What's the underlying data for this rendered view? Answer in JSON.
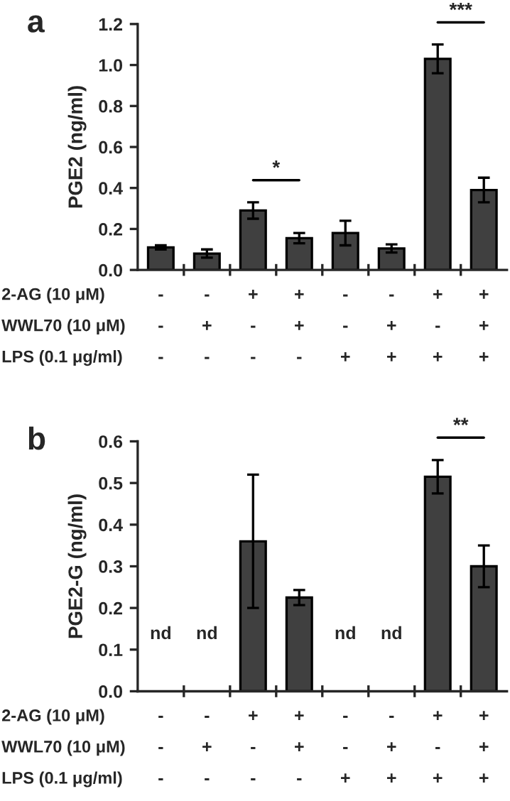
{
  "chart_data": [
    {
      "type": "bar",
      "title": "a",
      "ylabel": "PGE2 (ng/ml)",
      "categories": [
        "-\n-\n-",
        "-\n+\n-",
        "+\n-\n-",
        "+\n+\n-",
        "-\n-\n+",
        "-\n+\n+",
        "+\n-\n+",
        "+\n+\n+"
      ],
      "values": [
        0.11,
        0.08,
        0.29,
        0.155,
        0.18,
        0.105,
        1.03,
        0.39
      ],
      "errors": [
        0.01,
        0.02,
        0.04,
        0.025,
        0.06,
        0.02,
        0.07,
        0.06
      ],
      "color": "#404040",
      "ylim": [
        0,
        1.2
      ],
      "yticks": [
        {
          "value": 0,
          "label": "0.0"
        },
        {
          "value": 0.2,
          "label": "0.2"
        },
        {
          "value": 0.4,
          "label": "0.4"
        },
        {
          "value": 0.6,
          "label": "0.6"
        },
        {
          "value": 0.8,
          "label": "0.8"
        },
        {
          "value": 1.0,
          "label": "1.0"
        },
        {
          "value": 1.2,
          "label": "1.2"
        }
      ],
      "annotations": [
        "2-AG (10 μM)",
        "WWL70 (10 μM)",
        "LPS (0.1 μg/ml)",
        "*",
        "***"
      ],
      "grid": false,
      "legend": false
    },
    {
      "type": "bar",
      "title": "b",
      "ylabel": "PGE2-G (ng/ml)",
      "categories": [
        "-\n-\n-",
        "-\n+\n-",
        "+\n-\n-",
        "+\n+\n-",
        "-\n-\n+",
        "-\n+\n+",
        "+\n-\n+",
        "+\n+\n+"
      ],
      "values": [
        null,
        null,
        0.36,
        0.225,
        null,
        null,
        0.515,
        0.3
      ],
      "errors": [
        null,
        null,
        0.16,
        0.018,
        null,
        null,
        0.04,
        0.05
      ],
      "value_labels": [
        "nd",
        "nd",
        null,
        null,
        "nd",
        "nd",
        null,
        null
      ],
      "color": "#404040",
      "ylim": [
        0,
        0.6
      ],
      "yticks": [
        {
          "value": 0,
          "label": "0.0"
        },
        {
          "value": 0.1,
          "label": "0.1"
        },
        {
          "value": 0.2,
          "label": "0.2"
        },
        {
          "value": 0.3,
          "label": "0.3"
        },
        {
          "value": 0.4,
          "label": "0.4"
        },
        {
          "value": 0.5,
          "label": "0.5"
        },
        {
          "value": 0.6,
          "label": "0.6"
        }
      ],
      "annotations": [
        "2-AG (10 μM)",
        "WWL70 (10 μM)",
        "LPS (0.1 μg/ml)",
        "**"
      ],
      "grid": false,
      "legend": false
    }
  ]
}
